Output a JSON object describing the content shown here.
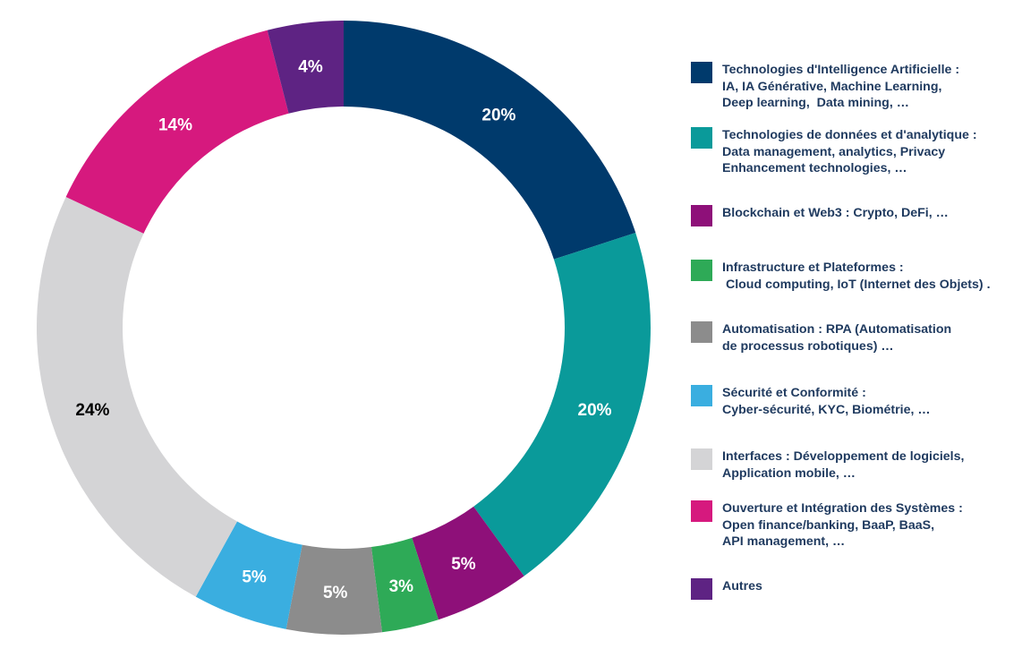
{
  "chart_data": {
    "type": "pie",
    "variant": "donut",
    "title": "",
    "series": [
      {
        "name": "Technologies d'Intelligence Artificielle : IA, IA Générative, Machine Learning, Deep learning,  Data mining, …",
        "value": 20,
        "label": "20%",
        "color": "#003a6c"
      },
      {
        "name": "Technologies de données et d'analytique : Data management, analytics, Privacy Enhancement technologies, …",
        "value": 20,
        "label": "20%",
        "color": "#0a9a9a"
      },
      {
        "name": "Blockchain et Web3 : Crypto, DeFi, …",
        "value": 5,
        "label": "5%",
        "color": "#8e1079"
      },
      {
        "name": "Infrastructure et Plateformes :  Cloud computing, IoT (Internet des Objets) .",
        "value": 3,
        "label": "3%",
        "color": "#2eaa57"
      },
      {
        "name": "Automatisation : RPA (Automatisation de processus robotiques) …",
        "value": 5,
        "label": "5%",
        "color": "#8c8c8c"
      },
      {
        "name": "Sécurité et Conformité : Cyber-sécurité, KYC, Biométrie, …",
        "value": 5,
        "label": "5%",
        "color": "#3aaee0"
      },
      {
        "name": "Interfaces : Développement de logiciels, Application mobile, …",
        "value": 24,
        "label": "24%",
        "color": "#d4d4d6"
      },
      {
        "name": "Ouverture et Intégration des Systèmes : Open finance/banking, BaaP, BaaS, API management, …",
        "value": 14,
        "label": "14%",
        "color": "#d6197e"
      },
      {
        "name": "Autres",
        "value": 4,
        "label": "4%",
        "color": "#5e2383"
      }
    ],
    "start": "top",
    "direction": "clockwise",
    "legend_position": "right"
  },
  "legend": [
    {
      "lines": [
        "Technologies d'Intelligence Artificielle :",
        "IA, IA Générative, Machine Learning,",
        "Deep learning,  Data mining, …"
      ]
    },
    {
      "lines": [
        "Technologies de données et d'analytique :",
        "Data management, analytics, Privacy",
        "Enhancement technologies, …"
      ]
    },
    {
      "lines": [
        "Blockchain et Web3 : Crypto, DeFi, …"
      ]
    },
    {
      "lines": [
        "Infrastructure et Plateformes :",
        " Cloud computing, IoT (Internet des Objets) ."
      ]
    },
    {
      "lines": [
        "Automatisation : RPA (Automatisation",
        "de processus robotiques) …"
      ]
    },
    {
      "lines": [
        "Sécurité et Conformité :",
        "Cyber-sécurité, KYC, Biométrie, …"
      ]
    },
    {
      "lines": [
        "Interfaces : Développement de logiciels,",
        "Application mobile, …"
      ]
    },
    {
      "lines": [
        "Ouverture et Intégration des Systèmes :",
        "Open finance/banking, BaaP, BaaS,",
        "API management, …"
      ]
    },
    {
      "lines": [
        "Autres"
      ]
    }
  ],
  "colors": {
    "legend_text": "#1f3a5f",
    "label_light": "#ffffff",
    "label_dark": "#000000"
  }
}
